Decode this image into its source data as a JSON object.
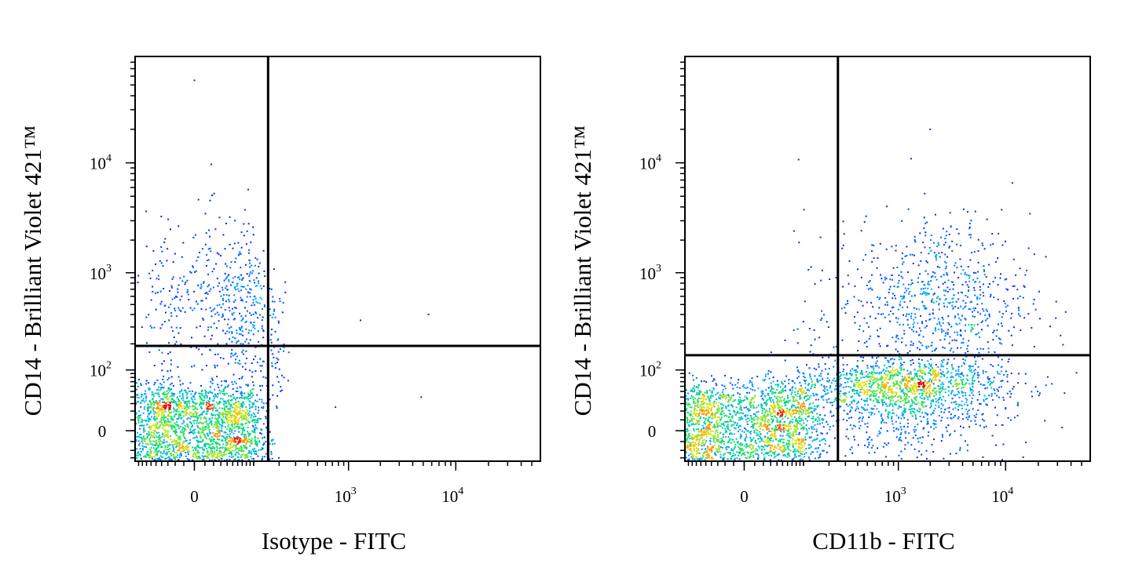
{
  "chart_data": [
    {
      "type": "scatter",
      "subtype": "flow-cytometry density dot plot",
      "title": "",
      "xlabel": "Isotype - FITC",
      "ylabel": "CD14 - Brilliant Violet 421™",
      "x_scale": "biexponential",
      "y_scale": "biexponential",
      "x_ticks": [
        {
          "value": 0,
          "base": "0",
          "exp": ""
        },
        {
          "value": 1000,
          "base": "10",
          "exp": "3"
        },
        {
          "value": 10000,
          "base": "10",
          "exp": "4"
        }
      ],
      "y_ticks": [
        {
          "value": 0,
          "base": "0",
          "exp": ""
        },
        {
          "value": 100,
          "base": "10",
          "exp": "2"
        },
        {
          "value": 1000,
          "base": "10",
          "exp": "3"
        },
        {
          "value": 10000,
          "base": "10",
          "exp": "4"
        }
      ],
      "xlim": [
        -100,
        60000
      ],
      "ylim": [
        -35,
        90000
      ],
      "quadrant_gate": {
        "x": 150,
        "y": 190
      },
      "populations": [
        {
          "name": "",
          "x_center": 0,
          "y_center": 0,
          "x_spread": 60,
          "y_spread": 30,
          "points": 2400,
          "density": "high"
        },
        {
          "name": "",
          "x_center": 40,
          "y_center": 480,
          "x_spread": 55,
          "y_spread": 0.35,
          "points": 550,
          "density": "low"
        },
        {
          "name": "",
          "x_center": 180,
          "y_center": 210,
          "x_spread": 40,
          "y_spread": 0.25,
          "points": 60,
          "density": "low"
        }
      ],
      "outliers": [
        [
          0,
          55000
        ],
        [
          1300,
          350
        ],
        [
          5600,
          400
        ],
        [
          750,
          25
        ],
        [
          4800,
          40
        ]
      ],
      "grid": false,
      "legend": "none"
    },
    {
      "type": "scatter",
      "subtype": "flow-cytometry density dot plot",
      "title": "",
      "xlabel": "CD11b - FITC",
      "ylabel": "CD14 - Brilliant Violet 421™",
      "x_scale": "biexponential",
      "y_scale": "biexponential",
      "x_ticks": [
        {
          "value": 0,
          "base": "0",
          "exp": ""
        },
        {
          "value": 1000,
          "base": "10",
          "exp": "3"
        },
        {
          "value": 10000,
          "base": "10",
          "exp": "4"
        }
      ],
      "y_ticks": [
        {
          "value": 0,
          "base": "0",
          "exp": ""
        },
        {
          "value": 100,
          "base": "10",
          "exp": "2"
        },
        {
          "value": 1000,
          "base": "10",
          "exp": "3"
        },
        {
          "value": 10000,
          "base": "10",
          "exp": "4"
        }
      ],
      "xlim": [
        -100,
        60000
      ],
      "ylim": [
        -35,
        90000
      ],
      "quadrant_gate": {
        "x": 250,
        "y": 150
      },
      "populations": [
        {
          "name": "",
          "x_center": 0,
          "y_center": 0,
          "x_spread": 70,
          "y_spread": 30,
          "points": 2200,
          "density": "high"
        },
        {
          "name": "",
          "x_center": 1000,
          "y_center": 50,
          "x_spread": 0.45,
          "y_spread": 35,
          "points": 1500,
          "density": "medium"
        },
        {
          "name": "",
          "x_center": 2800,
          "y_center": 550,
          "x_spread": 0.35,
          "y_spread": 0.35,
          "points": 600,
          "density": "low"
        },
        {
          "name": "",
          "x_center": 900,
          "y_center": 250,
          "x_spread": 0.4,
          "y_spread": 0.4,
          "points": 300,
          "density": "low"
        }
      ],
      "outliers": [
        [
          2000,
          20000
        ],
        [
          1800,
          2200
        ],
        [
          3000,
          1700
        ],
        [
          8500,
          90
        ],
        [
          400,
          420
        ]
      ],
      "grid": false,
      "legend": "none"
    }
  ]
}
